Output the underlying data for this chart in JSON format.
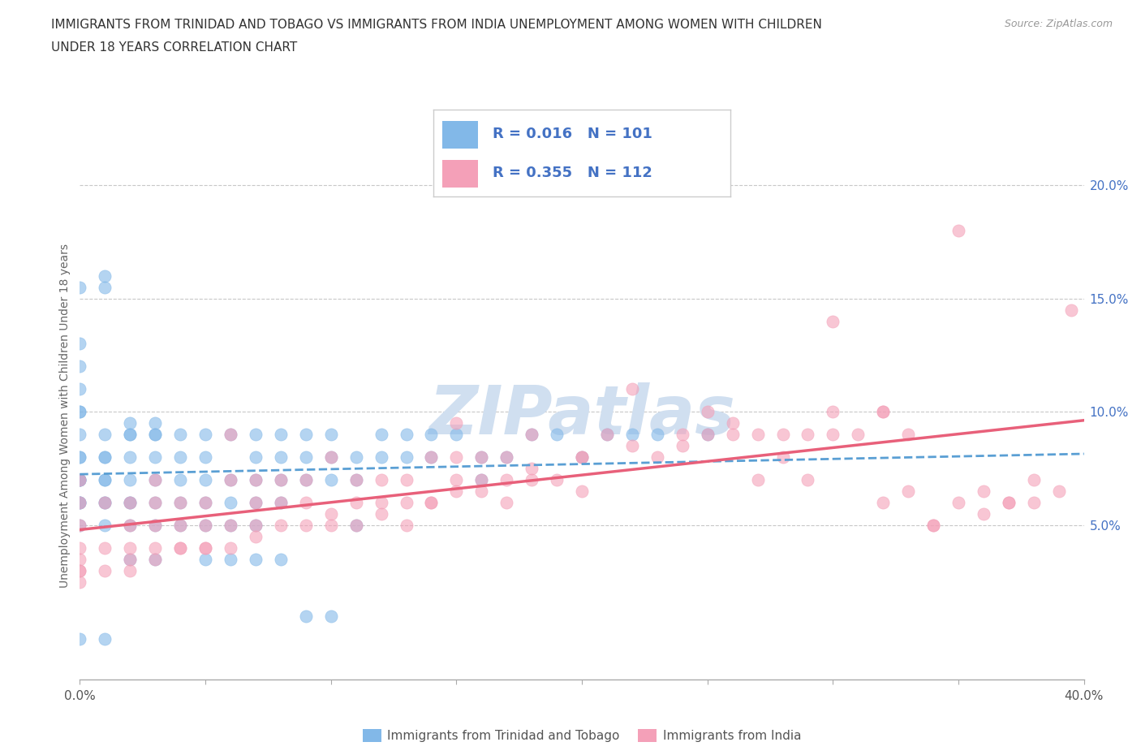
{
  "title_line1": "IMMIGRANTS FROM TRINIDAD AND TOBAGO VS IMMIGRANTS FROM INDIA UNEMPLOYMENT AMONG WOMEN WITH CHILDREN",
  "title_line2": "UNDER 18 YEARS CORRELATION CHART",
  "source": "Source: ZipAtlas.com",
  "ylabel": "Unemployment Among Women with Children Under 18 years",
  "xmin": 0.0,
  "xmax": 0.4,
  "ymin": -0.018,
  "ymax": 0.215,
  "xticks": [
    0.0,
    0.05,
    0.1,
    0.15,
    0.2,
    0.25,
    0.3,
    0.35,
    0.4
  ],
  "ytick_right_labels": [
    "5.0%",
    "10.0%",
    "15.0%",
    "20.0%"
  ],
  "ytick_right_vals": [
    0.05,
    0.1,
    0.15,
    0.2
  ],
  "color_tt": "#82b8e8",
  "color_india": "#f4a0b8",
  "R_tt": 0.016,
  "N_tt": 101,
  "R_india": 0.355,
  "N_india": 112,
  "legend_label_tt": "Immigrants from Trinidad and Tobago",
  "legend_label_india": "Immigrants from India",
  "watermark": "ZIPatlas",
  "background_color": "#ffffff",
  "grid_color": "#cccccc",
  "trend_color_tt": "#5a9fd4",
  "trend_color_india": "#e8607a",
  "tt_x": [
    0.0,
    0.0,
    0.0,
    0.0,
    0.0,
    0.0,
    0.0,
    0.0,
    0.0,
    0.0,
    0.0,
    0.0,
    0.0,
    0.0,
    0.0,
    0.0,
    0.01,
    0.01,
    0.01,
    0.01,
    0.01,
    0.01,
    0.01,
    0.01,
    0.02,
    0.02,
    0.02,
    0.02,
    0.02,
    0.02,
    0.02,
    0.03,
    0.03,
    0.03,
    0.03,
    0.03,
    0.03,
    0.04,
    0.04,
    0.04,
    0.04,
    0.05,
    0.05,
    0.05,
    0.05,
    0.06,
    0.06,
    0.06,
    0.07,
    0.07,
    0.07,
    0.07,
    0.08,
    0.08,
    0.08,
    0.09,
    0.09,
    0.1,
    0.1,
    0.1,
    0.11,
    0.11,
    0.12,
    0.12,
    0.13,
    0.13,
    0.14,
    0.14,
    0.15,
    0.16,
    0.16,
    0.17,
    0.18,
    0.19,
    0.2,
    0.21,
    0.22,
    0.23,
    0.0,
    0.01,
    0.01,
    0.02,
    0.03,
    0.04,
    0.05,
    0.06,
    0.07,
    0.08,
    0.09,
    0.25,
    0.0,
    0.01,
    0.02,
    0.03,
    0.05,
    0.06,
    0.07,
    0.08,
    0.09,
    0.1,
    0.11
  ],
  "tt_y": [
    0.07,
    0.07,
    0.07,
    0.07,
    0.06,
    0.06,
    0.06,
    0.05,
    0.08,
    0.08,
    0.09,
    0.1,
    0.1,
    0.11,
    0.12,
    0.13,
    0.07,
    0.07,
    0.06,
    0.06,
    0.05,
    0.08,
    0.09,
    0.08,
    0.07,
    0.06,
    0.06,
    0.05,
    0.09,
    0.09,
    0.08,
    0.07,
    0.06,
    0.05,
    0.08,
    0.09,
    0.09,
    0.06,
    0.05,
    0.08,
    0.07,
    0.06,
    0.05,
    0.08,
    0.07,
    0.05,
    0.06,
    0.07,
    0.06,
    0.05,
    0.07,
    0.08,
    0.06,
    0.07,
    0.08,
    0.07,
    0.08,
    0.08,
    0.07,
    0.09,
    0.08,
    0.07,
    0.09,
    0.08,
    0.09,
    0.08,
    0.09,
    0.08,
    0.09,
    0.08,
    0.07,
    0.08,
    0.09,
    0.09,
    0.08,
    0.09,
    0.09,
    0.09,
    0.155,
    0.155,
    0.16,
    0.095,
    0.095,
    0.09,
    0.09,
    0.09,
    0.09,
    0.09,
    0.09,
    0.09,
    0.0,
    0.0,
    0.035,
    0.035,
    0.035,
    0.035,
    0.035,
    0.035,
    0.01,
    0.01,
    0.05
  ],
  "india_x": [
    0.0,
    0.0,
    0.0,
    0.0,
    0.0,
    0.0,
    0.0,
    0.01,
    0.01,
    0.02,
    0.02,
    0.02,
    0.02,
    0.03,
    0.03,
    0.03,
    0.03,
    0.04,
    0.04,
    0.04,
    0.05,
    0.05,
    0.05,
    0.06,
    0.06,
    0.06,
    0.07,
    0.07,
    0.07,
    0.08,
    0.08,
    0.09,
    0.09,
    0.1,
    0.1,
    0.11,
    0.11,
    0.12,
    0.12,
    0.13,
    0.13,
    0.14,
    0.14,
    0.15,
    0.15,
    0.16,
    0.16,
    0.17,
    0.17,
    0.18,
    0.18,
    0.19,
    0.2,
    0.2,
    0.21,
    0.22,
    0.23,
    0.24,
    0.25,
    0.26,
    0.27,
    0.28,
    0.29,
    0.3,
    0.31,
    0.32,
    0.33,
    0.34,
    0.35,
    0.36,
    0.37,
    0.38,
    0.39,
    0.395,
    0.0,
    0.01,
    0.02,
    0.03,
    0.04,
    0.05,
    0.06,
    0.07,
    0.08,
    0.09,
    0.1,
    0.11,
    0.12,
    0.13,
    0.14,
    0.15,
    0.16,
    0.17,
    0.18,
    0.2,
    0.22,
    0.24,
    0.26,
    0.28,
    0.3,
    0.32,
    0.34,
    0.36,
    0.38,
    0.3,
    0.32,
    0.35,
    0.37,
    0.25,
    0.27,
    0.29,
    0.33,
    0.15
  ],
  "india_y": [
    0.05,
    0.04,
    0.03,
    0.06,
    0.07,
    0.035,
    0.025,
    0.04,
    0.06,
    0.04,
    0.03,
    0.05,
    0.06,
    0.05,
    0.04,
    0.06,
    0.07,
    0.05,
    0.04,
    0.06,
    0.05,
    0.06,
    0.04,
    0.05,
    0.07,
    0.09,
    0.05,
    0.06,
    0.07,
    0.06,
    0.07,
    0.06,
    0.07,
    0.05,
    0.08,
    0.06,
    0.07,
    0.06,
    0.07,
    0.05,
    0.07,
    0.06,
    0.08,
    0.07,
    0.08,
    0.07,
    0.08,
    0.06,
    0.08,
    0.07,
    0.09,
    0.07,
    0.08,
    0.065,
    0.09,
    0.11,
    0.08,
    0.09,
    0.1,
    0.095,
    0.09,
    0.08,
    0.09,
    0.1,
    0.09,
    0.1,
    0.09,
    0.05,
    0.06,
    0.065,
    0.06,
    0.07,
    0.065,
    0.145,
    0.03,
    0.03,
    0.035,
    0.035,
    0.04,
    0.04,
    0.04,
    0.045,
    0.05,
    0.05,
    0.055,
    0.05,
    0.055,
    0.06,
    0.06,
    0.065,
    0.065,
    0.07,
    0.075,
    0.08,
    0.085,
    0.085,
    0.09,
    0.09,
    0.09,
    0.1,
    0.05,
    0.055,
    0.06,
    0.14,
    0.06,
    0.18,
    0.06,
    0.09,
    0.07,
    0.07,
    0.065,
    0.095
  ]
}
